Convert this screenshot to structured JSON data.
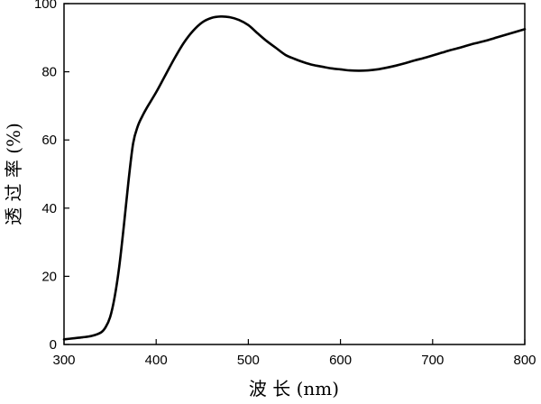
{
  "chart_data": {
    "type": "line",
    "title": "",
    "xlabel": "波 长 (nm)",
    "ylabel": "透 过 率 (%)",
    "xlim": [
      300,
      800
    ],
    "ylim": [
      0,
      100
    ],
    "x_ticks": [
      300,
      400,
      500,
      600,
      700,
      800
    ],
    "y_ticks": [
      0,
      20,
      40,
      60,
      80,
      100
    ],
    "grid": false,
    "legend": "none",
    "line_color": "#000000",
    "series": [
      {
        "x": [
          300,
          310,
          320,
          330,
          340,
          345,
          350,
          355,
          360,
          365,
          370,
          375,
          380,
          385,
          390,
          400,
          410,
          420,
          430,
          440,
          450,
          460,
          470,
          480,
          490,
          500,
          510,
          520,
          530,
          540,
          550,
          560,
          570,
          580,
          590,
          600,
          610,
          620,
          630,
          640,
          650,
          660,
          670,
          680,
          690,
          700,
          710,
          720,
          730,
          740,
          750,
          760,
          770,
          780,
          790,
          800
        ],
        "y": [
          1.5,
          1.8,
          2.1,
          2.5,
          3.5,
          5.0,
          8.0,
          14.0,
          23.0,
          35.0,
          48.0,
          59.0,
          64.0,
          67.0,
          69.5,
          74.0,
          79.0,
          84.0,
          88.5,
          92.0,
          94.5,
          95.8,
          96.2,
          96.0,
          95.2,
          93.7,
          91.3,
          89.0,
          87.0,
          85.0,
          83.8,
          82.8,
          82.0,
          81.5,
          81.0,
          80.7,
          80.4,
          80.3,
          80.4,
          80.7,
          81.2,
          81.8,
          82.5,
          83.3,
          84.0,
          84.8,
          85.6,
          86.4,
          87.1,
          87.9,
          88.6,
          89.3,
          90.1,
          90.9,
          91.7,
          92.5
        ]
      }
    ]
  }
}
